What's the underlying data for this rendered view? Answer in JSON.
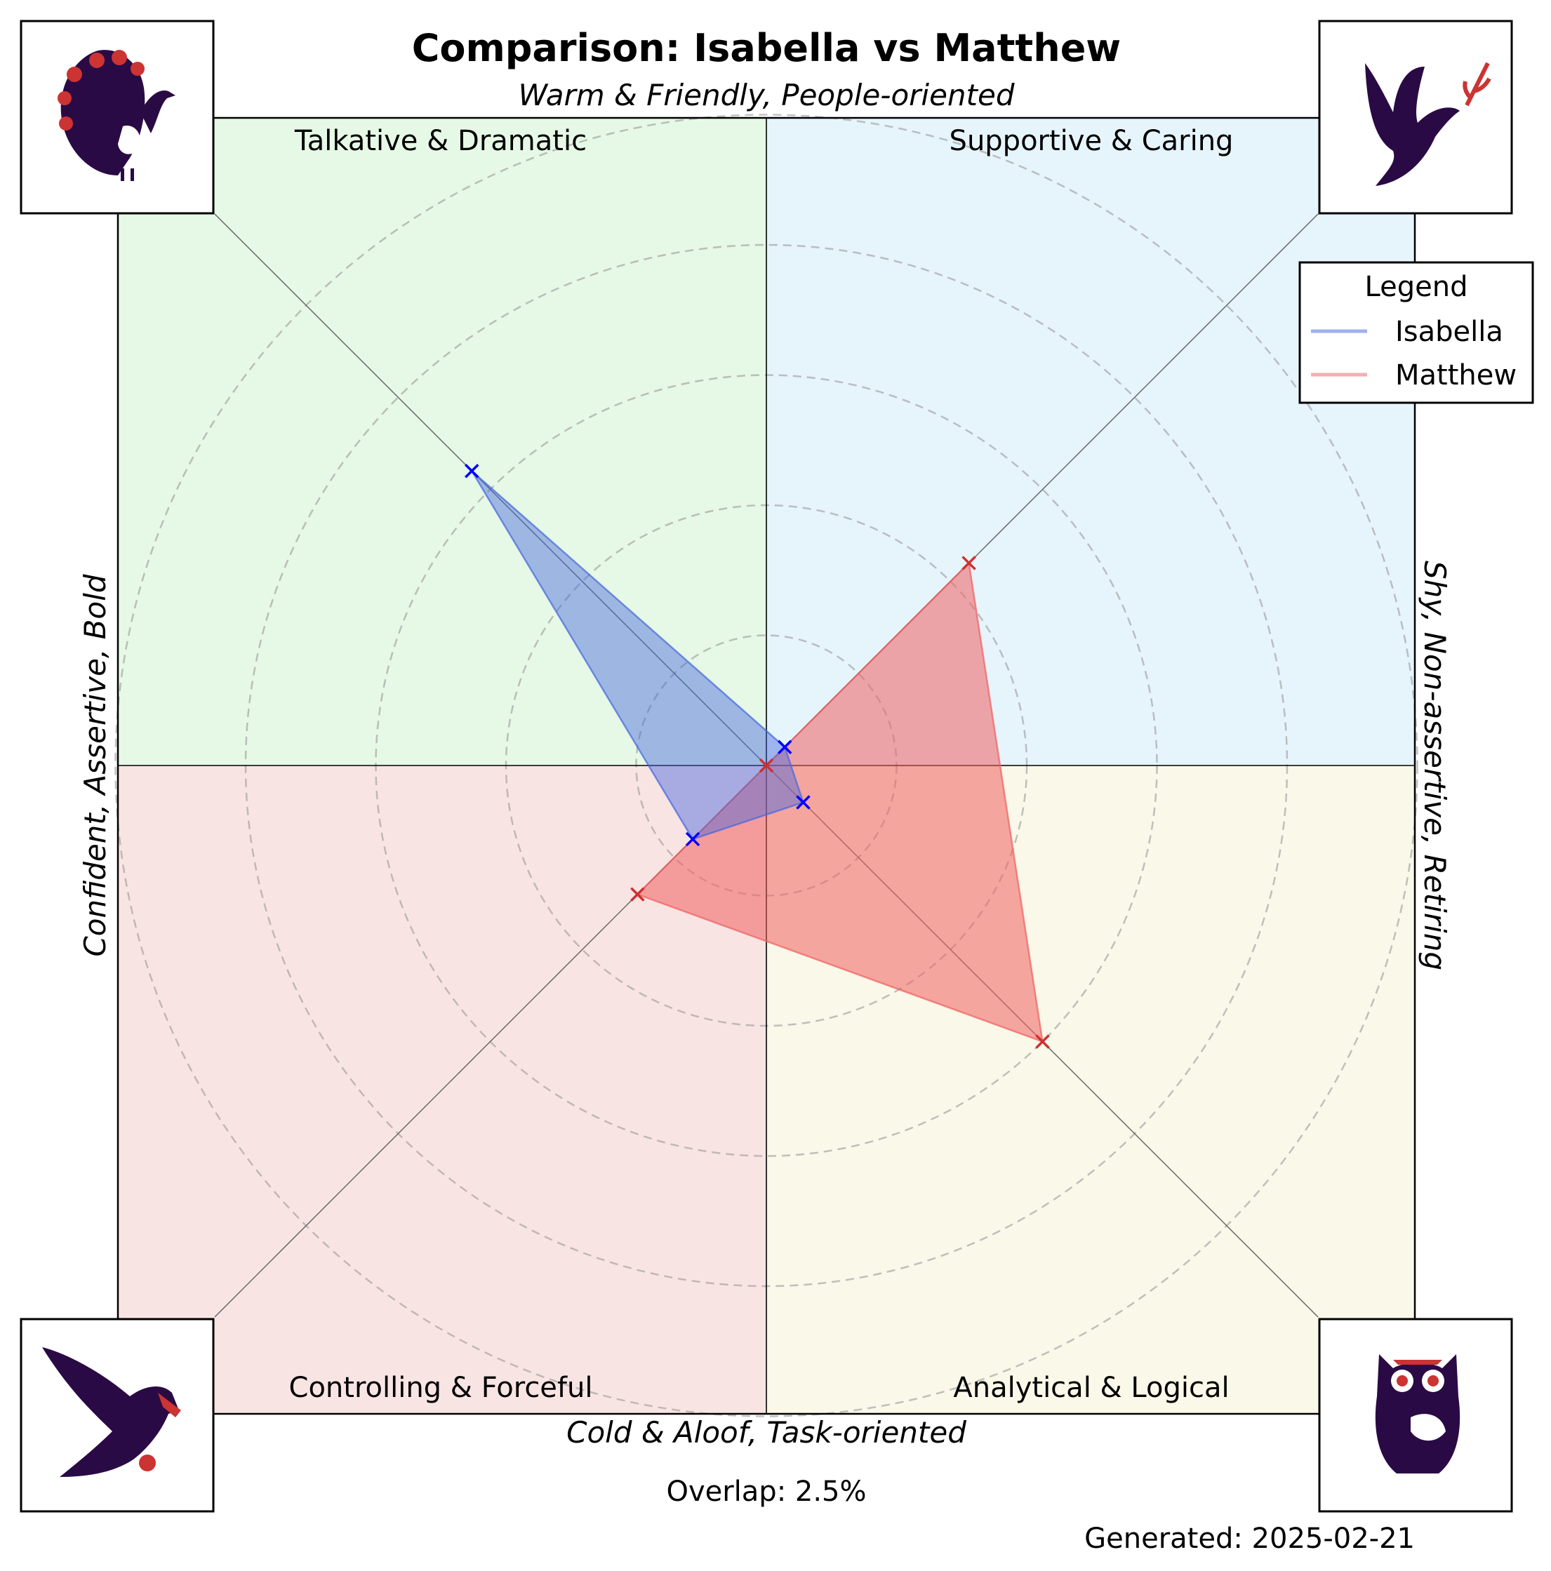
{
  "chart_data": {
    "type": "radar",
    "title": "Comparison: Isabella vs Matthew",
    "axis_top": "Warm & Friendly, People-oriented",
    "axis_bottom": "Cold & Aloof, Task-oriented",
    "axis_left": "Confident, Assertive, Bold",
    "axis_right": "Shy, Non-assertive, Retiring",
    "quadrants": [
      {
        "name": "Talkative & Dramatic",
        "position": "top-left",
        "color": "#e6f8e6",
        "icon": "peacock-icon"
      },
      {
        "name": "Supportive & Caring",
        "position": "top-right",
        "color": "#e6f4fc",
        "icon": "dove-icon"
      },
      {
        "name": "Controlling & Forceful",
        "position": "bottom-left",
        "color": "#f9e4e4",
        "icon": "eagle-icon"
      },
      {
        "name": "Analytical & Logical",
        "position": "bottom-right",
        "color": "#f9f8e9",
        "icon": "owl-icon"
      }
    ],
    "categories": [
      "Supportive & Caring",
      "Talkative & Dramatic",
      "Controlling & Forceful",
      "Analytical & Logical"
    ],
    "axis_angles_deg": [
      45,
      135,
      225,
      315
    ],
    "rlim": [
      0,
      5
    ],
    "ring_count": 5,
    "series": [
      {
        "name": "Isabella",
        "values": [
          0.2,
          3.2,
          0.8,
          0.4
        ],
        "color": "#4466dd",
        "marker_color": "#0000ff"
      },
      {
        "name": "Matthew",
        "values": [
          2.2,
          0.0,
          1.4,
          3.0
        ],
        "color": "#f06060",
        "marker_color": "#d03030"
      }
    ],
    "legend": {
      "title": "Legend",
      "placement": "upper-right"
    },
    "grid": true
  },
  "overlap_text": "Overlap: 2.5%",
  "generated_text": "Generated: 2025-02-21",
  "colors": {
    "icon_dark": "#2a0a45",
    "icon_accent": "#cc3333"
  }
}
